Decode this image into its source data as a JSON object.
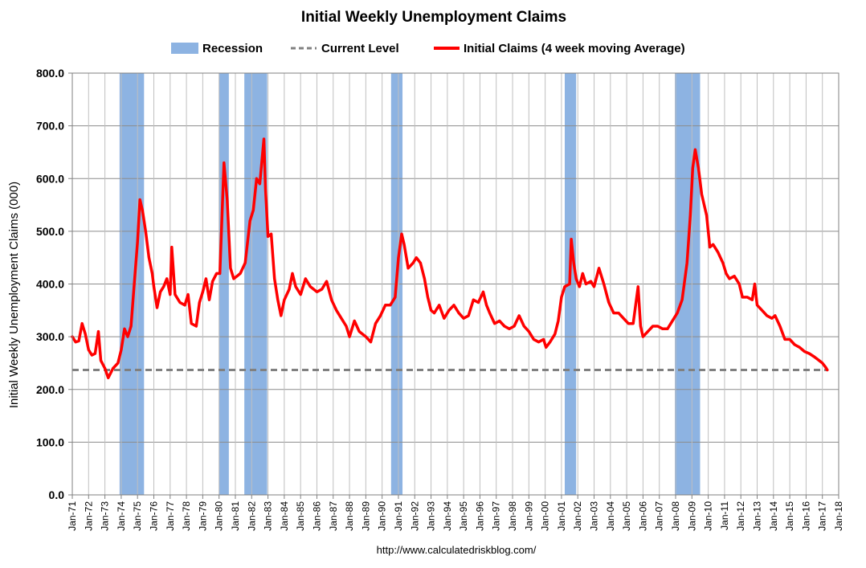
{
  "chart_data": {
    "type": "line",
    "title": "Initial Weekly Unemployment Claims",
    "xlabel": "",
    "ylabel": "Initial Weekly Unemployment Claims (000)",
    "source": "http://www.calculatedriskblog.com/",
    "ylim": [
      0,
      800
    ],
    "yticks": [
      "0.0",
      "100.0",
      "200.0",
      "300.0",
      "400.0",
      "500.0",
      "600.0",
      "700.0",
      "800.0"
    ],
    "xlim": [
      1971,
      2018
    ],
    "xticks": [
      "Jan-71",
      "Jan-72",
      "Jan-73",
      "Jan-74",
      "Jan-75",
      "Jan-76",
      "Jan-77",
      "Jan-78",
      "Jan-79",
      "Jan-80",
      "Jan-81",
      "Jan-82",
      "Jan-83",
      "Jan-84",
      "Jan-85",
      "Jan-86",
      "Jan-87",
      "Jan-88",
      "Jan-89",
      "Jan-90",
      "Jan-91",
      "Jan-92",
      "Jan-93",
      "Jan-94",
      "Jan-95",
      "Jan-96",
      "Jan-97",
      "Jan-98",
      "Jan-99",
      "Jan-00",
      "Jan-01",
      "Jan-02",
      "Jan-03",
      "Jan-04",
      "Jan-05",
      "Jan-06",
      "Jan-07",
      "Jan-08",
      "Jan-09",
      "Jan-10",
      "Jan-11",
      "Jan-12",
      "Jan-13",
      "Jan-14",
      "Jan-15",
      "Jan-16",
      "Jan-17",
      "Jan-18"
    ],
    "grid": true,
    "legend_position": "top",
    "legend": {
      "recession": "Recession",
      "current": "Current Level",
      "claims": "Initial Claims (4 week moving Average)"
    },
    "colors": {
      "recession": "#8db3e2",
      "current": "#808080",
      "claims": "#ff0000",
      "grid": "#bfbfbf"
    },
    "recessions": [
      {
        "start": 1973.9,
        "end": 1975.4
      },
      {
        "start": 1980.0,
        "end": 1980.6
      },
      {
        "start": 1981.55,
        "end": 1982.95
      },
      {
        "start": 1990.55,
        "end": 1991.25
      },
      {
        "start": 2001.2,
        "end": 2001.9
      },
      {
        "start": 2007.95,
        "end": 2009.5
      }
    ],
    "current_level": 237,
    "series": [
      {
        "name": "Initial Claims (4 week moving Average)",
        "points": [
          [
            1971.0,
            300
          ],
          [
            1971.2,
            290
          ],
          [
            1971.4,
            292
          ],
          [
            1971.6,
            325
          ],
          [
            1971.8,
            305
          ],
          [
            1972.0,
            275
          ],
          [
            1972.2,
            265
          ],
          [
            1972.4,
            268
          ],
          [
            1972.6,
            310
          ],
          [
            1972.75,
            255
          ],
          [
            1973.0,
            240
          ],
          [
            1973.2,
            222
          ],
          [
            1973.5,
            240
          ],
          [
            1973.8,
            250
          ],
          [
            1974.0,
            275
          ],
          [
            1974.2,
            315
          ],
          [
            1974.4,
            300
          ],
          [
            1974.6,
            320
          ],
          [
            1974.8,
            400
          ],
          [
            1975.0,
            480
          ],
          [
            1975.15,
            560
          ],
          [
            1975.3,
            540
          ],
          [
            1975.5,
            500
          ],
          [
            1975.7,
            450
          ],
          [
            1975.9,
            420
          ],
          [
            1976.0,
            395
          ],
          [
            1976.2,
            355
          ],
          [
            1976.4,
            385
          ],
          [
            1976.6,
            395
          ],
          [
            1976.8,
            410
          ],
          [
            1977.0,
            380
          ],
          [
            1977.1,
            470
          ],
          [
            1977.3,
            380
          ],
          [
            1977.6,
            365
          ],
          [
            1977.9,
            360
          ],
          [
            1978.1,
            380
          ],
          [
            1978.3,
            325
          ],
          [
            1978.6,
            320
          ],
          [
            1978.8,
            365
          ],
          [
            1979.0,
            385
          ],
          [
            1979.2,
            410
          ],
          [
            1979.4,
            370
          ],
          [
            1979.6,
            405
          ],
          [
            1979.85,
            420
          ],
          [
            1980.05,
            420
          ],
          [
            1980.3,
            630
          ],
          [
            1980.5,
            560
          ],
          [
            1980.7,
            430
          ],
          [
            1980.9,
            410
          ],
          [
            1981.1,
            415
          ],
          [
            1981.3,
            420
          ],
          [
            1981.6,
            440
          ],
          [
            1981.9,
            520
          ],
          [
            1982.1,
            540
          ],
          [
            1982.3,
            600
          ],
          [
            1982.5,
            590
          ],
          [
            1982.75,
            675
          ],
          [
            1982.85,
            580
          ],
          [
            1983.0,
            490
          ],
          [
            1983.2,
            495
          ],
          [
            1983.4,
            410
          ],
          [
            1983.6,
            370
          ],
          [
            1983.8,
            340
          ],
          [
            1984.0,
            370
          ],
          [
            1984.3,
            390
          ],
          [
            1984.5,
            420
          ],
          [
            1984.7,
            395
          ],
          [
            1985.0,
            380
          ],
          [
            1985.3,
            410
          ],
          [
            1985.6,
            395
          ],
          [
            1986.0,
            385
          ],
          [
            1986.3,
            390
          ],
          [
            1986.6,
            405
          ],
          [
            1986.9,
            370
          ],
          [
            1987.2,
            350
          ],
          [
            1987.5,
            335
          ],
          [
            1987.8,
            320
          ],
          [
            1988.0,
            300
          ],
          [
            1988.3,
            330
          ],
          [
            1988.6,
            310
          ],
          [
            1989.0,
            300
          ],
          [
            1989.3,
            290
          ],
          [
            1989.6,
            325
          ],
          [
            1989.9,
            340
          ],
          [
            1990.2,
            360
          ],
          [
            1990.5,
            360
          ],
          [
            1990.8,
            375
          ],
          [
            1991.0,
            450
          ],
          [
            1991.2,
            495
          ],
          [
            1991.35,
            475
          ],
          [
            1991.6,
            430
          ],
          [
            1991.9,
            440
          ],
          [
            1992.1,
            450
          ],
          [
            1992.35,
            440
          ],
          [
            1992.6,
            410
          ],
          [
            1992.8,
            375
          ],
          [
            1993.0,
            350
          ],
          [
            1993.2,
            345
          ],
          [
            1993.5,
            360
          ],
          [
            1993.8,
            335
          ],
          [
            1994.1,
            350
          ],
          [
            1994.4,
            360
          ],
          [
            1994.7,
            345
          ],
          [
            1995.0,
            335
          ],
          [
            1995.3,
            340
          ],
          [
            1995.6,
            370
          ],
          [
            1995.9,
            365
          ],
          [
            1996.2,
            385
          ],
          [
            1996.4,
            360
          ],
          [
            1996.6,
            345
          ],
          [
            1996.9,
            325
          ],
          [
            1997.2,
            330
          ],
          [
            1997.5,
            320
          ],
          [
            1997.8,
            315
          ],
          [
            1998.1,
            320
          ],
          [
            1998.4,
            340
          ],
          [
            1998.7,
            320
          ],
          [
            1999.0,
            310
          ],
          [
            1999.3,
            295
          ],
          [
            1999.6,
            290
          ],
          [
            1999.9,
            295
          ],
          [
            2000.05,
            280
          ],
          [
            2000.3,
            290
          ],
          [
            2000.6,
            305
          ],
          [
            2000.8,
            330
          ],
          [
            2001.0,
            375
          ],
          [
            2001.2,
            395
          ],
          [
            2001.5,
            400
          ],
          [
            2001.6,
            485
          ],
          [
            2001.75,
            440
          ],
          [
            2001.9,
            410
          ],
          [
            2002.1,
            395
          ],
          [
            2002.3,
            420
          ],
          [
            2002.5,
            400
          ],
          [
            2002.8,
            405
          ],
          [
            2003.0,
            395
          ],
          [
            2003.3,
            430
          ],
          [
            2003.6,
            400
          ],
          [
            2003.9,
            365
          ],
          [
            2004.2,
            345
          ],
          [
            2004.5,
            345
          ],
          [
            2004.8,
            335
          ],
          [
            2005.1,
            325
          ],
          [
            2005.4,
            325
          ],
          [
            2005.7,
            395
          ],
          [
            2005.85,
            320
          ],
          [
            2006.0,
            300
          ],
          [
            2006.3,
            310
          ],
          [
            2006.6,
            320
          ],
          [
            2006.9,
            320
          ],
          [
            2007.2,
            315
          ],
          [
            2007.5,
            315
          ],
          [
            2007.8,
            330
          ],
          [
            2008.1,
            345
          ],
          [
            2008.4,
            370
          ],
          [
            2008.7,
            440
          ],
          [
            2008.9,
            530
          ],
          [
            2009.05,
            620
          ],
          [
            2009.2,
            655
          ],
          [
            2009.4,
            620
          ],
          [
            2009.6,
            570
          ],
          [
            2009.9,
            530
          ],
          [
            2010.1,
            470
          ],
          [
            2010.3,
            475
          ],
          [
            2010.6,
            460
          ],
          [
            2010.9,
            440
          ],
          [
            2011.1,
            420
          ],
          [
            2011.3,
            410
          ],
          [
            2011.6,
            415
          ],
          [
            2011.9,
            400
          ],
          [
            2012.1,
            375
          ],
          [
            2012.4,
            375
          ],
          [
            2012.7,
            370
          ],
          [
            2012.85,
            400
          ],
          [
            2013.0,
            360
          ],
          [
            2013.3,
            350
          ],
          [
            2013.6,
            340
          ],
          [
            2013.9,
            335
          ],
          [
            2014.1,
            340
          ],
          [
            2014.4,
            320
          ],
          [
            2014.7,
            295
          ],
          [
            2015.0,
            295
          ],
          [
            2015.3,
            285
          ],
          [
            2015.6,
            280
          ],
          [
            2015.9,
            272
          ],
          [
            2016.2,
            268
          ],
          [
            2016.5,
            262
          ],
          [
            2016.8,
            255
          ],
          [
            2017.0,
            250
          ],
          [
            2017.2,
            242
          ],
          [
            2017.3,
            237
          ]
        ]
      }
    ]
  }
}
